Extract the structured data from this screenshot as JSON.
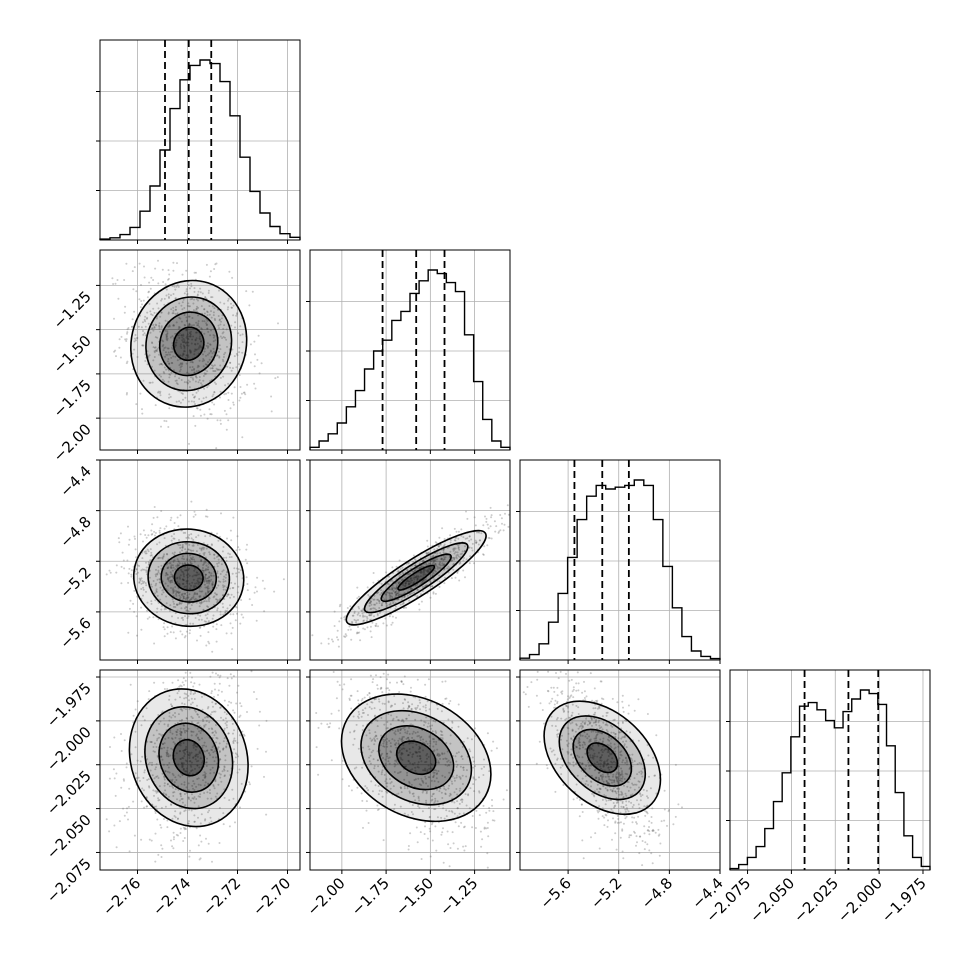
{
  "chart_data": {
    "type": "corner",
    "n_params": 4,
    "params": [
      {
        "range": [
          -2.775,
          -2.695
        ],
        "ticks": [
          -2.76,
          -2.74,
          -2.72,
          -2.7
        ],
        "tick_labels": [
          "−2.76",
          "−2.74",
          "−2.72",
          "−2.70"
        ],
        "quantiles": [
          -2.749,
          -2.7395,
          -2.7305
        ],
        "mean": -2.7395,
        "sd": 0.0095
      },
      {
        "range": [
          -2.18,
          -1.05
        ],
        "ticks": [
          -2.0,
          -1.75,
          -1.5,
          -1.25
        ],
        "tick_labels": [
          "−2.00",
          "−1.75",
          "−1.50",
          "−1.25"
        ],
        "quantiles": [
          -1.77,
          -1.58,
          -1.42
        ],
        "mean": -1.58,
        "sd": 0.17
      },
      {
        "range": [
          -5.98,
          -4.4
        ],
        "ticks": [
          -5.6,
          -5.2,
          -4.8,
          -4.4
        ],
        "tick_labels": [
          "−5.6",
          "−5.2",
          "−4.8",
          "−4.4"
        ],
        "quantiles": [
          -5.55,
          -5.33,
          -5.12
        ],
        "mean": -5.33,
        "sd": 0.17
      },
      {
        "range": [
          -2.085,
          -1.971
        ],
        "ticks": [
          -2.075,
          -2.05,
          -2.025,
          -2.0,
          -1.975
        ],
        "tick_labels": [
          "−2.075",
          "−2.050",
          "−2.025",
          "−2.000",
          "−1.975"
        ],
        "quantiles": [
          -2.0425,
          -2.0175,
          -2.0005
        ],
        "mean": -2.021,
        "sd": 0.019
      }
    ],
    "histograms": [
      [
        0.005,
        0.012,
        0.03,
        0.07,
        0.16,
        0.3,
        0.5,
        0.73,
        0.89,
        0.97,
        1.0,
        0.98,
        0.88,
        0.69,
        0.46,
        0.27,
        0.15,
        0.075,
        0.035,
        0.015
      ],
      [
        0.015,
        0.05,
        0.09,
        0.15,
        0.24,
        0.33,
        0.45,
        0.55,
        0.61,
        0.72,
        0.77,
        0.87,
        0.94,
        1.0,
        0.98,
        0.93,
        0.88,
        0.64,
        0.38,
        0.17,
        0.05,
        0.015
      ],
      [
        0.01,
        0.03,
        0.09,
        0.21,
        0.37,
        0.57,
        0.78,
        0.91,
        0.97,
        0.95,
        0.96,
        0.97,
        1.0,
        0.97,
        0.78,
        0.52,
        0.29,
        0.13,
        0.05,
        0.02,
        0.008
      ],
      [
        0.008,
        0.03,
        0.07,
        0.13,
        0.23,
        0.38,
        0.54,
        0.74,
        0.91,
        0.93,
        0.89,
        0.83,
        0.79,
        0.88,
        0.95,
        1.0,
        0.98,
        0.92,
        0.69,
        0.43,
        0.19,
        0.07,
        0.02
      ]
    ]
  }
}
